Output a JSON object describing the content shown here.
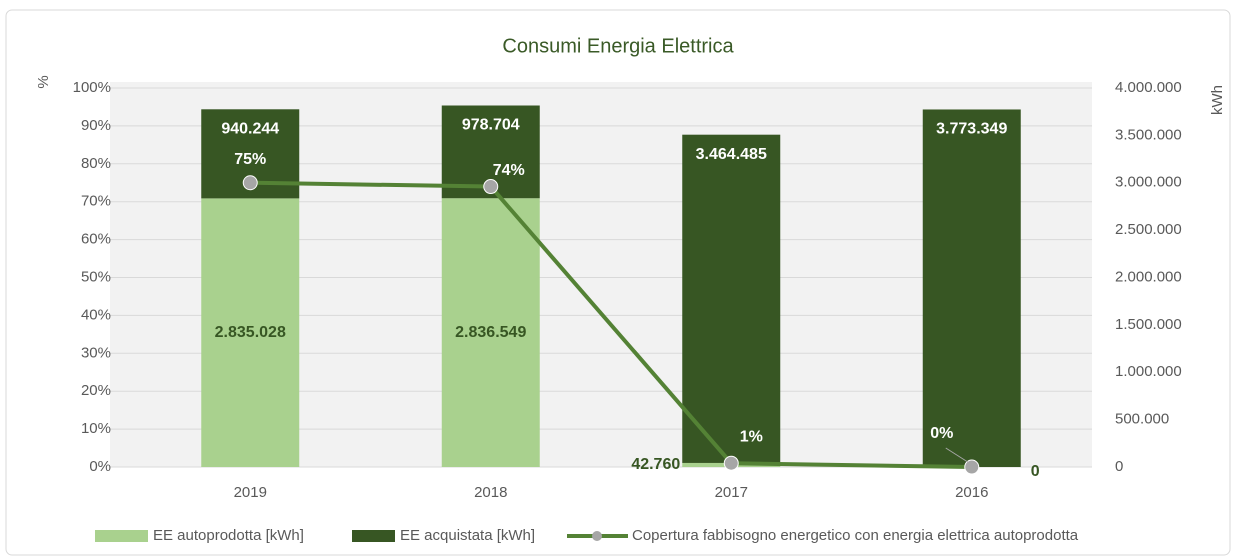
{
  "chart_data": {
    "type": "bar-line",
    "title": "Consumi Energia Elettrica",
    "ylabel": "%",
    "y2label": "kWh",
    "categories": [
      "2019",
      "2018",
      "2017",
      "2016"
    ],
    "ylim": [
      0,
      100
    ],
    "yticks": [
      {
        "value": 0,
        "label": "0%"
      },
      {
        "value": 10,
        "label": "10%"
      },
      {
        "value": 20,
        "label": "20%"
      },
      {
        "value": 30,
        "label": "30%"
      },
      {
        "value": 40,
        "label": "40%"
      },
      {
        "value": 50,
        "label": "50%"
      },
      {
        "value": 60,
        "label": "60%"
      },
      {
        "value": 70,
        "label": "70%"
      },
      {
        "value": 80,
        "label": "80%"
      },
      {
        "value": 90,
        "label": "90%"
      },
      {
        "value": 100,
        "label": "100%"
      }
    ],
    "y2lim": [
      0,
      4000000
    ],
    "y2ticks": [
      0,
      {
        "value": 500000,
        "label": "500.000"
      },
      {
        "value": 1000000,
        "label": "1.000.000"
      },
      {
        "value": 1500000,
        "label": "1.500.000"
      },
      {
        "value": 2000000,
        "label": "2.000.000"
      },
      {
        "value": 2500000,
        "label": "2.500.000"
      },
      {
        "value": 3000000,
        "label": "3.000.000"
      },
      {
        "value": 3500000,
        "label": "3.500.000"
      },
      {
        "value": 4000000,
        "label": "4.000.000"
      }
    ],
    "grid": true,
    "series": [
      {
        "name": "EE autoprodotta [kWh]",
        "type": "bar",
        "axis": "y2",
        "color": "#a9d18e",
        "values": [
          2835028,
          2836549,
          42760,
          0
        ],
        "value_labels": [
          "2.835.028",
          "2.836.549",
          "42.760",
          "0"
        ]
      },
      {
        "name": "EE acquistata [kWh]",
        "type": "bar",
        "axis": "y2",
        "color": "#375623",
        "values": [
          940244,
          978704,
          3464485,
          3773349
        ],
        "value_labels": [
          "940.244",
          "978.704",
          "3.464.485",
          "3.773.349"
        ]
      },
      {
        "name": "Copertura fabbisogno energetico con energia elettrica autoprodotta",
        "type": "line",
        "axis": "y",
        "color": "#548235",
        "marker_color": "#a6a6a6",
        "values": [
          75,
          74,
          1,
          0
        ],
        "value_labels": [
          "75%",
          "74%",
          "1%",
          "0%"
        ]
      }
    ],
    "legend": "bottom"
  }
}
